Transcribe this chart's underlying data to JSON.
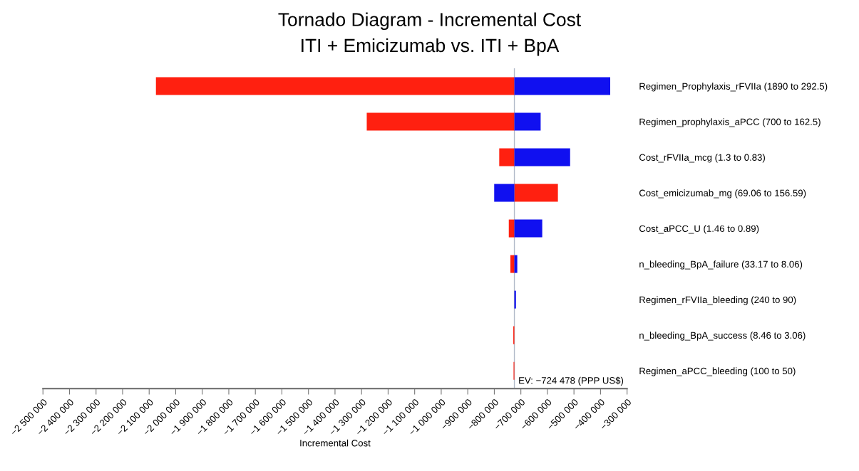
{
  "chart_data": {
    "type": "bar",
    "orientation": "horizontal",
    "title": "Tornado Diagram - Incremental Cost",
    "subtitle": "ITI + Emicizumab vs. ITI + BpA",
    "xlabel": "Incremental Cost",
    "categories": [
      "Regimen_Prophylaxis_rFVIIa (1890 to 292.5)",
      "Regimen_prophylaxis_aPCC (700 to 162.5)",
      "Cost_rFVIIa_mcg (1.3 to 0.83)",
      "Cost_emicizumab_mg (69.06 to 156.59)",
      "Cost_aPCC_U (1.46 to 0.89)",
      "n_bleeding_BpA_failure (33.17 to 8.06)",
      "Regimen_rFVIIa_bleeding (240 to 90)",
      "n_bleeding_BpA_success (8.46 to 3.06)",
      "Regimen_aPCC_bleeding (100 to 50)"
    ],
    "series": [
      {
        "color": "#ff2010",
        "base": [
          -724478,
          -724478,
          -724478,
          -724478,
          -724478,
          -724478,
          null,
          -724478,
          -724478
        ],
        "values": [
          -1350000,
          -556000,
          -57000,
          164000,
          -21000,
          -15000,
          null,
          -4000,
          -3000
        ]
      },
      {
        "color": "#1010f0",
        "base": [
          -724478,
          -724478,
          -724478,
          -724478,
          -724478,
          -724478,
          -724478,
          null,
          null
        ],
        "values": [
          361000,
          99000,
          210000,
          -76000,
          105000,
          11000,
          6000,
          null,
          null
        ]
      }
    ],
    "xlim": [
      -2500000,
      -300000
    ],
    "xticks": [
      {
        "value": -2500000,
        "label": "−2 500 000"
      },
      {
        "value": -2400000,
        "label": "−2 400 000"
      },
      {
        "value": -2300000,
        "label": "−2 300 000"
      },
      {
        "value": -2200000,
        "label": "−2 200 000"
      },
      {
        "value": -2100000,
        "label": "−2 100 000"
      },
      {
        "value": -2000000,
        "label": "−2 000 000"
      },
      {
        "value": -1900000,
        "label": "−1 900 000"
      },
      {
        "value": -1800000,
        "label": "−1 800 000"
      },
      {
        "value": -1700000,
        "label": "−1 700 000"
      },
      {
        "value": -1600000,
        "label": "−1 600 000"
      },
      {
        "value": -1500000,
        "label": "−1 500 000"
      },
      {
        "value": -1400000,
        "label": "−1 400 000"
      },
      {
        "value": -1300000,
        "label": "−1 300 000"
      },
      {
        "value": -1200000,
        "label": "−1 200 000"
      },
      {
        "value": -1100000,
        "label": "−1 100 000"
      },
      {
        "value": -1000000,
        "label": "−1 000 000"
      },
      {
        "value": -900000,
        "label": "−900 000"
      },
      {
        "value": -800000,
        "label": "−800 000"
      },
      {
        "value": -700000,
        "label": "−700 000"
      },
      {
        "value": -600000,
        "label": "−600 000"
      },
      {
        "value": -500000,
        "label": "−500 000"
      },
      {
        "value": -400000,
        "label": "−400 000"
      },
      {
        "value": -300000,
        "label": "−300 000"
      }
    ],
    "ref_lines": [
      {
        "axis": "x",
        "value": -724478,
        "label": "EV: −724 478 (PPP US$)",
        "color": "#b0b8c8"
      }
    ],
    "grid": false,
    "legend": false
  }
}
